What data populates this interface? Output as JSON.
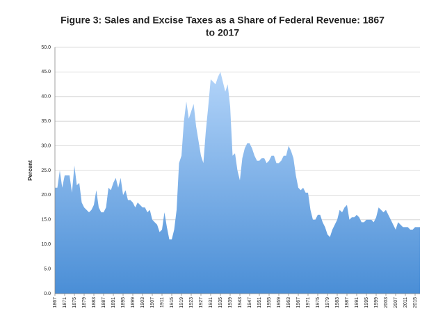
{
  "chart_data": {
    "type": "area",
    "title": [
      "Figure 3: Sales and Excise Taxes as a Share of Federal Revenue: 1867",
      "to 2017"
    ],
    "y_label": "Percent",
    "gradient": [
      "#b3d4f9",
      "#4a8ed6"
    ],
    "grid": true,
    "xlim": [
      1867,
      2017
    ],
    "ylim": [
      0,
      50
    ],
    "yticks": [
      {
        "value": 0,
        "label": "0.0"
      },
      {
        "value": 5,
        "label": "5.0"
      },
      {
        "value": 10,
        "label": "10.0"
      },
      {
        "value": 15,
        "label": "15.0"
      },
      {
        "value": 20,
        "label": "20.0"
      },
      {
        "value": 25,
        "label": "25.0"
      },
      {
        "value": 30,
        "label": "30.0"
      },
      {
        "value": 35,
        "label": "35.0"
      },
      {
        "value": 40,
        "label": "40.0"
      },
      {
        "value": 45,
        "label": "45.0"
      },
      {
        "value": 50,
        "label": "50.0"
      }
    ],
    "xticks": [
      1867,
      1871,
      1875,
      1879,
      1883,
      1887,
      1891,
      1895,
      1899,
      1903,
      1907,
      1911,
      1915,
      1919,
      1923,
      1927,
      1931,
      1935,
      1939,
      1943,
      1947,
      1951,
      1955,
      1959,
      1963,
      1967,
      1971,
      1975,
      1979,
      1983,
      1987,
      1991,
      1995,
      1999,
      2003,
      2007,
      2011,
      2015
    ],
    "x": [
      1867,
      1868,
      1869,
      1870,
      1871,
      1872,
      1873,
      1874,
      1875,
      1876,
      1877,
      1878,
      1879,
      1880,
      1881,
      1882,
      1883,
      1884,
      1885,
      1886,
      1887,
      1888,
      1889,
      1890,
      1891,
      1892,
      1893,
      1894,
      1895,
      1896,
      1897,
      1898,
      1899,
      1900,
      1901,
      1902,
      1903,
      1904,
      1905,
      1906,
      1907,
      1908,
      1909,
      1910,
      1911,
      1912,
      1913,
      1914,
      1915,
      1916,
      1917,
      1918,
      1919,
      1920,
      1921,
      1922,
      1923,
      1924,
      1925,
      1926,
      1927,
      1928,
      1929,
      1930,
      1931,
      1932,
      1933,
      1934,
      1935,
      1936,
      1937,
      1938,
      1939,
      1940,
      1941,
      1942,
      1943,
      1944,
      1945,
      1946,
      1947,
      1948,
      1949,
      1950,
      1951,
      1952,
      1953,
      1954,
      1955,
      1956,
      1957,
      1958,
      1959,
      1960,
      1961,
      1962,
      1963,
      1964,
      1965,
      1966,
      1967,
      1968,
      1969,
      1970,
      1971,
      1972,
      1973,
      1974,
      1975,
      1976,
      1977,
      1978,
      1979,
      1980,
      1981,
      1982,
      1983,
      1984,
      1985,
      1986,
      1987,
      1988,
      1989,
      1990,
      1991,
      1992,
      1993,
      1994,
      1995,
      1996,
      1997,
      1998,
      1999,
      2000,
      2001,
      2002,
      2003,
      2004,
      2005,
      2006,
      2007,
      2008,
      2009,
      2010,
      2011,
      2012,
      2013,
      2014,
      2015,
      2016,
      2017
    ],
    "values": [
      21.5,
      21.5,
      25,
      21.5,
      24,
      24,
      24,
      20.5,
      26,
      22,
      22.5,
      18.5,
      17.5,
      17,
      16.5,
      17,
      18,
      21,
      17.5,
      16.5,
      16.5,
      17.5,
      21.5,
      21,
      22.5,
      23.5,
      21.5,
      23.5,
      20,
      21,
      19,
      19,
      18.5,
      17.5,
      18.5,
      18,
      17.5,
      17.5,
      16.5,
      17,
      15,
      14.5,
      14,
      12.5,
      13,
      16.5,
      13.5,
      11,
      11,
      13,
      17,
      26.5,
      28,
      35,
      39,
      35.5,
      37,
      38.5,
      34,
      31,
      28,
      26.5,
      33,
      38,
      43.5,
      43,
      42.5,
      44,
      45,
      43,
      41,
      42.5,
      38,
      28,
      28.5,
      25,
      23,
      27.5,
      29.5,
      30.5,
      30.5,
      29.5,
      28,
      27,
      27,
      27.5,
      27.5,
      26.5,
      27,
      28,
      28,
      26.5,
      26.5,
      27,
      28,
      28,
      30,
      29,
      27.5,
      24,
      21.5,
      21,
      21.5,
      20.5,
      20.5,
      17,
      15,
      15,
      16,
      16,
      14.5,
      13.5,
      12,
      11.5,
      13,
      14,
      15,
      17,
      16.5,
      17.5,
      18,
      15,
      15.5,
      15.5,
      16,
      15.5,
      14.5,
      14.5,
      15,
      15,
      15,
      14.5,
      15.5,
      17.5,
      17,
      16.5,
      17,
      16,
      15,
      14,
      13,
      14.5,
      14,
      13.5,
      13.5,
      13.5,
      13,
      13,
      13.5,
      13.5,
      13.5
    ]
  }
}
